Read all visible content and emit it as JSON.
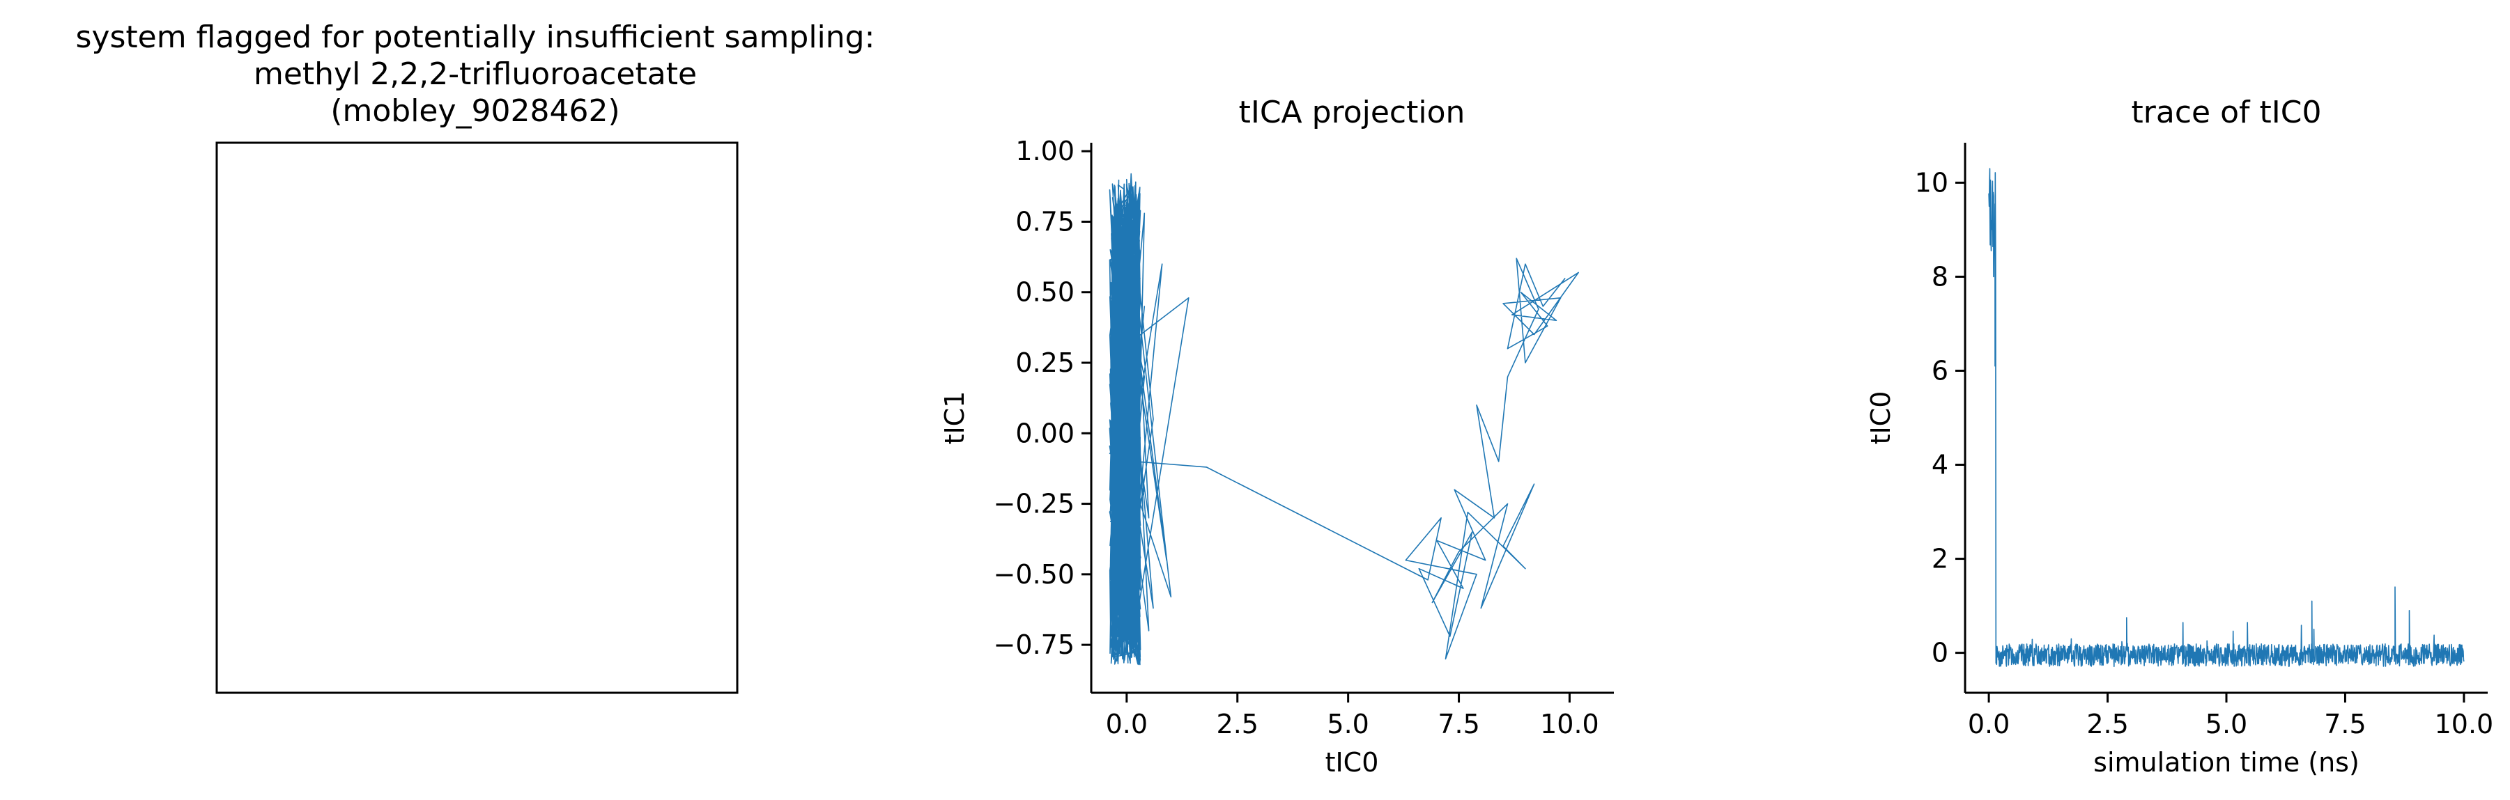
{
  "colors": {
    "series": "#1f77b4",
    "axes": "#000000",
    "background": "#ffffff"
  },
  "suptitle_lines": [
    "system flagged for potentially insufficient sampling:",
    "methyl 2,2,2-trifluoroacetate",
    "(mobley_9028462)"
  ],
  "panels": {
    "molecule": {
      "content": "empty frame (no image rendered)"
    },
    "tica": {
      "title": "tICA projection",
      "xlabel": "tIC0",
      "ylabel": "tIC1"
    },
    "trace": {
      "title": "trace of tIC0",
      "xlabel": "simulation time (ns)",
      "ylabel": "tIC0"
    }
  },
  "chart_data": [
    {
      "type": "line",
      "title": "tICA projection",
      "xlabel": "tIC0",
      "ylabel": "tIC1",
      "xlim": [
        -0.8,
        11.0
      ],
      "ylim": [
        -0.92,
        1.03
      ],
      "xticks": [
        0.0,
        2.5,
        5.0,
        7.5,
        10.0
      ],
      "xtick_labels": [
        "0.0",
        "2.5",
        "5.0",
        "7.5",
        "10.0"
      ],
      "yticks": [
        -0.75,
        -0.5,
        -0.25,
        0.0,
        0.25,
        0.5,
        0.75,
        1.0
      ],
      "ytick_labels": [
        "−0.75",
        "−0.50",
        "−0.25",
        "0.00",
        "0.25",
        "0.50",
        "0.75",
        "1.00"
      ],
      "grid": false,
      "spines": "left-bottom",
      "series": [
        {
          "color": "#1f77b4",
          "points": [
            [
              9.9,
              0.55
            ],
            [
              9.4,
              0.45
            ],
            [
              9.0,
              0.6
            ],
            [
              8.6,
              0.3
            ],
            [
              9.5,
              0.38
            ],
            [
              8.9,
              0.5
            ],
            [
              9.7,
              0.4
            ],
            [
              8.7,
              0.42
            ],
            [
              10.2,
              0.57
            ],
            [
              9.2,
              0.35
            ],
            [
              8.5,
              0.46
            ],
            [
              9.8,
              0.48
            ],
            [
              9.0,
              0.25
            ],
            [
              8.8,
              0.62
            ],
            [
              9.3,
              0.44
            ],
            [
              8.6,
              0.2
            ],
            [
              8.4,
              -0.1
            ],
            [
              7.9,
              0.1
            ],
            [
              8.3,
              -0.3
            ],
            [
              7.4,
              -0.2
            ],
            [
              8.1,
              -0.45
            ],
            [
              7.0,
              -0.38
            ],
            [
              7.6,
              -0.55
            ],
            [
              6.6,
              -0.48
            ],
            [
              7.3,
              -0.72
            ],
            [
              7.8,
              -0.35
            ],
            [
              6.9,
              -0.6
            ],
            [
              7.5,
              -0.42
            ],
            [
              8.6,
              -0.25
            ],
            [
              8.0,
              -0.62
            ],
            [
              9.2,
              -0.18
            ],
            [
              8.5,
              -0.4
            ],
            [
              9.0,
              -0.48
            ],
            [
              7.7,
              -0.28
            ],
            [
              7.2,
              -0.8
            ],
            [
              7.9,
              -0.5
            ],
            [
              6.3,
              -0.45
            ],
            [
              7.1,
              -0.3
            ],
            [
              6.8,
              -0.52
            ],
            [
              1.8,
              -0.12
            ],
            [
              0.2,
              -0.1
            ],
            [
              -0.2,
              0.8
            ],
            [
              0.3,
              0.55
            ],
            [
              -0.1,
              -0.6
            ],
            [
              0.4,
              0.2
            ],
            [
              -0.3,
              0.7
            ],
            [
              0.2,
              -0.45
            ],
            [
              0.0,
              0.9
            ],
            [
              0.5,
              -0.7
            ],
            [
              -0.2,
              0.1
            ],
            [
              0.3,
              0.85
            ],
            [
              0.1,
              -0.78
            ],
            [
              1.4,
              0.48
            ],
            [
              -0.1,
              0.3
            ],
            [
              0.4,
              -0.2
            ],
            [
              -0.3,
              -0.5
            ],
            [
              0.2,
              0.65
            ],
            [
              0.6,
              0.05
            ],
            [
              -0.2,
              -0.8
            ],
            [
              0.1,
              0.4
            ],
            [
              0.9,
              -0.45
            ],
            [
              -0.1,
              0.72
            ],
            [
              0.3,
              -0.65
            ],
            [
              0.0,
              0.15
            ],
            [
              -0.3,
              0.55
            ],
            [
              0.5,
              -0.3
            ],
            [
              0.1,
              0.92
            ],
            [
              -0.2,
              -0.35
            ],
            [
              0.8,
              0.6
            ],
            [
              0.0,
              -0.72
            ],
            [
              0.3,
              0.35
            ],
            [
              -0.1,
              -0.05
            ],
            [
              0.4,
              0.78
            ],
            [
              0.2,
              -0.55
            ],
            [
              -0.3,
              0.25
            ],
            [
              0.6,
              -0.62
            ],
            [
              0.0,
              0.5
            ],
            [
              0.3,
              -0.82
            ],
            [
              -0.2,
              0.68
            ],
            [
              0.1,
              -0.15
            ],
            [
              1.0,
              -0.58
            ],
            [
              0.0,
              0.82
            ],
            [
              -0.1,
              -0.4
            ],
            [
              0.4,
              0.45
            ],
            [
              0.1,
              0.0
            ]
          ]
        }
      ]
    },
    {
      "type": "line",
      "title": "trace of tIC0",
      "xlabel": "simulation time (ns)",
      "ylabel": "tIC0",
      "xlim": [
        -0.5,
        10.5
      ],
      "ylim": [
        -0.85,
        10.85
      ],
      "xticks": [
        0.0,
        2.5,
        5.0,
        7.5,
        10.0
      ],
      "xtick_labels": [
        "0.0",
        "2.5",
        "5.0",
        "7.5",
        "10.0"
      ],
      "yticks": [
        0,
        2,
        4,
        6,
        8,
        10
      ],
      "ytick_labels": [
        "0",
        "2",
        "4",
        "6",
        "8",
        "10"
      ],
      "grid": false,
      "spines": "left-bottom",
      "series": [
        {
          "color": "#1f77b4",
          "description_of_signal": "values near 10 for t < 0.15 ns, then drop to ~0 with noise amplitude ~0.3 and sparse spikes up to ~1.4 near t = 8.6",
          "segments": [
            {
              "t_start": 0.0,
              "t_end": 0.15,
              "level": 9.0,
              "noise": 1.2
            },
            {
              "t_start": 0.15,
              "t_end": 10.0,
              "level": -0.05,
              "noise": 0.3
            }
          ],
          "peaks": [
            [
              0.02,
              10.3
            ],
            [
              0.1,
              8.0
            ],
            [
              0.13,
              6.1
            ],
            [
              8.55,
              1.4
            ],
            [
              6.8,
              1.1
            ],
            [
              2.9,
              0.75
            ],
            [
              8.85,
              0.9
            ]
          ],
          "samples": 1400
        }
      ]
    }
  ]
}
